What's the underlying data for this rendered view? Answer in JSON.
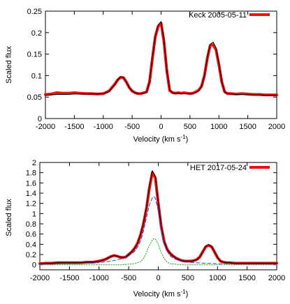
{
  "chart_data": [
    {
      "type": "line",
      "xlabel": "Velocity (km s",
      "xlabel_sup": "-1",
      "xlabel_end": ")",
      "ylabel": "Scaled flux",
      "xlim": [
        -2000,
        2000
      ],
      "ylim": [
        0,
        0.25
      ],
      "xticks": [
        -2000,
        -1500,
        -1000,
        -500,
        0,
        500,
        1000,
        1500,
        2000
      ],
      "yticks": [
        0,
        0.05,
        0.1,
        0.15,
        0.2,
        0.25
      ],
      "ytick_labels": [
        "0",
        "0.05",
        "0.1",
        "0.15",
        "0.2",
        "0.25"
      ],
      "legend_position": "top-right",
      "series": [
        {
          "name": "Keck 2005-05-11",
          "color": "#ee1111",
          "style": "thick",
          "in_legend": true,
          "x": [
            -2000,
            -1900,
            -1800,
            -1700,
            -1600,
            -1500,
            -1400,
            -1300,
            -1200,
            -1100,
            -1000,
            -900,
            -800,
            -750,
            -700,
            -650,
            -600,
            -550,
            -500,
            -450,
            -400,
            -350,
            -300,
            -250,
            -200,
            -150,
            -100,
            -50,
            0,
            50,
            100,
            150,
            200,
            250,
            300,
            350,
            400,
            450,
            500,
            550,
            600,
            650,
            700,
            750,
            800,
            850,
            900,
            950,
            1000,
            1050,
            1100,
            1150,
            1200,
            1300,
            1400,
            1500,
            1600,
            1700,
            1800,
            1900,
            2000
          ],
          "y": [
            0.056,
            0.057,
            0.06,
            0.059,
            0.059,
            0.06,
            0.059,
            0.058,
            0.058,
            0.057,
            0.058,
            0.064,
            0.08,
            0.09,
            0.096,
            0.095,
            0.085,
            0.072,
            0.064,
            0.06,
            0.058,
            0.058,
            0.06,
            0.062,
            0.085,
            0.14,
            0.19,
            0.215,
            0.222,
            0.18,
            0.11,
            0.065,
            0.06,
            0.059,
            0.06,
            0.059,
            0.06,
            0.059,
            0.058,
            0.059,
            0.062,
            0.066,
            0.075,
            0.1,
            0.14,
            0.17,
            0.172,
            0.16,
            0.125,
            0.085,
            0.062,
            0.058,
            0.058,
            0.057,
            0.058,
            0.057,
            0.056,
            0.056,
            0.055,
            0.055,
            0.055
          ]
        },
        {
          "name": "",
          "color": "#000000",
          "style": "thin",
          "in_legend": false,
          "x": [
            -2000,
            -1900,
            -1800,
            -1700,
            -1600,
            -1500,
            -1400,
            -1300,
            -1200,
            -1100,
            -1000,
            -900,
            -800,
            -750,
            -700,
            -650,
            -600,
            -550,
            -500,
            -450,
            -400,
            -350,
            -300,
            -250,
            -200,
            -150,
            -100,
            -50,
            0,
            50,
            100,
            150,
            200,
            250,
            300,
            350,
            400,
            450,
            500,
            550,
            600,
            650,
            700,
            750,
            800,
            850,
            900,
            950,
            1000,
            1050,
            1100,
            1150,
            1200,
            1300,
            1400,
            1500,
            1600,
            1700,
            1800,
            1900,
            2000
          ],
          "y": [
            0.054,
            0.055,
            0.056,
            0.056,
            0.056,
            0.057,
            0.057,
            0.057,
            0.057,
            0.057,
            0.058,
            0.063,
            0.079,
            0.09,
            0.097,
            0.096,
            0.085,
            0.072,
            0.064,
            0.06,
            0.058,
            0.058,
            0.059,
            0.062,
            0.086,
            0.142,
            0.193,
            0.218,
            0.226,
            0.183,
            0.112,
            0.066,
            0.06,
            0.059,
            0.059,
            0.058,
            0.058,
            0.058,
            0.058,
            0.058,
            0.061,
            0.065,
            0.075,
            0.101,
            0.143,
            0.173,
            0.178,
            0.165,
            0.128,
            0.086,
            0.062,
            0.058,
            0.057,
            0.056,
            0.056,
            0.055,
            0.055,
            0.055,
            0.054,
            0.054,
            0.054
          ]
        }
      ]
    },
    {
      "type": "line",
      "xlabel": "Velocity (km s",
      "xlabel_sup": "-1",
      "xlabel_end": ")",
      "ylabel": "Scaled flux",
      "xlim": [
        -2000,
        2000
      ],
      "ylim": [
        -0.1,
        2
      ],
      "xticks": [
        -2000,
        -1500,
        -1000,
        -500,
        0,
        500,
        1000,
        1500,
        2000
      ],
      "yticks": [
        0,
        0.2,
        0.4,
        0.6,
        0.8,
        1,
        1.2,
        1.4,
        1.6,
        1.8,
        2
      ],
      "ytick_labels": [
        "0",
        "0.2",
        "0.4",
        "0.6",
        "0.8",
        "1",
        "1.2",
        "1.4",
        "1.6",
        "1.8",
        "2"
      ],
      "legend_position": "top-right",
      "series": [
        {
          "name": "HET 2017-05-24",
          "color": "#ee1111",
          "style": "thick",
          "in_legend": true,
          "x": [
            -2000,
            -1900,
            -1800,
            -1700,
            -1600,
            -1500,
            -1400,
            -1300,
            -1200,
            -1100,
            -1000,
            -900,
            -800,
            -750,
            -700,
            -650,
            -600,
            -550,
            -500,
            -450,
            -400,
            -350,
            -300,
            -250,
            -200,
            -150,
            -100,
            -50,
            0,
            50,
            100,
            150,
            200,
            250,
            300,
            350,
            400,
            450,
            500,
            550,
            600,
            650,
            700,
            750,
            800,
            850,
            900,
            950,
            1000,
            1050,
            1100,
            1150,
            1200,
            1300,
            1400,
            1500,
            1600,
            1700,
            1800,
            1900,
            2000
          ],
          "y": [
            0.02,
            0.03,
            0.03,
            0.04,
            0.04,
            0.04,
            0.04,
            0.04,
            0.05,
            0.05,
            0.07,
            0.1,
            0.16,
            0.18,
            0.17,
            0.15,
            0.14,
            0.15,
            0.2,
            0.25,
            0.32,
            0.42,
            0.58,
            0.8,
            1.1,
            1.5,
            1.8,
            1.7,
            1.2,
            0.75,
            0.45,
            0.3,
            0.22,
            0.17,
            0.13,
            0.1,
            0.08,
            0.07,
            0.07,
            0.07,
            0.08,
            0.1,
            0.15,
            0.25,
            0.35,
            0.38,
            0.35,
            0.25,
            0.14,
            0.07,
            0.05,
            0.04,
            0.04,
            0.03,
            0.03,
            0.03,
            0.03,
            0.03,
            0.03,
            0.03,
            0.03
          ]
        },
        {
          "name": "",
          "color": "#000000",
          "style": "thin",
          "in_legend": false,
          "x": [
            -2000,
            -1900,
            -1800,
            -1700,
            -1600,
            -1500,
            -1400,
            -1300,
            -1200,
            -1100,
            -1000,
            -900,
            -800,
            -750,
            -700,
            -650,
            -600,
            -550,
            -500,
            -450,
            -400,
            -350,
            -300,
            -250,
            -200,
            -150,
            -100,
            -50,
            0,
            50,
            100,
            150,
            200,
            250,
            300,
            350,
            400,
            450,
            500,
            550,
            600,
            650,
            700,
            750,
            800,
            850,
            900,
            950,
            1000,
            1050,
            1100,
            1150,
            1200,
            1300,
            1400,
            1500,
            1600,
            1700,
            1800,
            1900,
            2000
          ],
          "y": [
            0.02,
            0.03,
            0.03,
            0.04,
            0.04,
            0.04,
            0.04,
            0.04,
            0.05,
            0.05,
            0.07,
            0.1,
            0.16,
            0.18,
            0.17,
            0.15,
            0.14,
            0.15,
            0.2,
            0.25,
            0.32,
            0.42,
            0.59,
            0.82,
            1.13,
            1.53,
            1.84,
            1.73,
            1.22,
            0.76,
            0.45,
            0.3,
            0.22,
            0.17,
            0.13,
            0.1,
            0.08,
            0.07,
            0.07,
            0.07,
            0.08,
            0.1,
            0.15,
            0.25,
            0.36,
            0.39,
            0.36,
            0.25,
            0.14,
            0.07,
            0.05,
            0.04,
            0.04,
            0.03,
            0.03,
            0.03,
            0.03,
            0.03,
            0.03,
            0.03,
            0.03
          ]
        },
        {
          "name": "",
          "color": "#3344dd",
          "style": "dashed",
          "in_legend": false,
          "x": [
            -2000,
            -1800,
            -1600,
            -1400,
            -1200,
            -1000,
            -800,
            -600,
            -500,
            -400,
            -350,
            -300,
            -250,
            -200,
            -150,
            -100,
            -75,
            -50,
            0,
            50,
            100,
            150,
            200,
            300,
            400,
            500,
            600,
            800,
            1000,
            1200,
            1400,
            1600,
            1800,
            2000
          ],
          "y": [
            0.01,
            0.01,
            0.02,
            0.02,
            0.03,
            0.04,
            0.07,
            0.12,
            0.17,
            0.26,
            0.34,
            0.46,
            0.66,
            0.92,
            1.17,
            1.31,
            1.33,
            1.3,
            1.05,
            0.7,
            0.42,
            0.26,
            0.17,
            0.1,
            0.07,
            0.05,
            0.04,
            0.03,
            0.02,
            0.02,
            0.01,
            0.01,
            0.01,
            0.01
          ]
        },
        {
          "name": "",
          "color": "#22aa22",
          "style": "dotted",
          "in_legend": false,
          "x": [
            -2000,
            -1000,
            -600,
            -400,
            -300,
            -250,
            -200,
            -150,
            -100,
            -75,
            -50,
            0,
            50,
            100,
            150,
            200,
            300,
            400,
            600,
            1000,
            2000
          ],
          "y": [
            0.0,
            0.0,
            0.0,
            0.02,
            0.06,
            0.12,
            0.24,
            0.38,
            0.48,
            0.51,
            0.5,
            0.4,
            0.24,
            0.12,
            0.05,
            0.02,
            0.01,
            0.0,
            0.0,
            0.0,
            0.0
          ]
        }
      ]
    }
  ]
}
